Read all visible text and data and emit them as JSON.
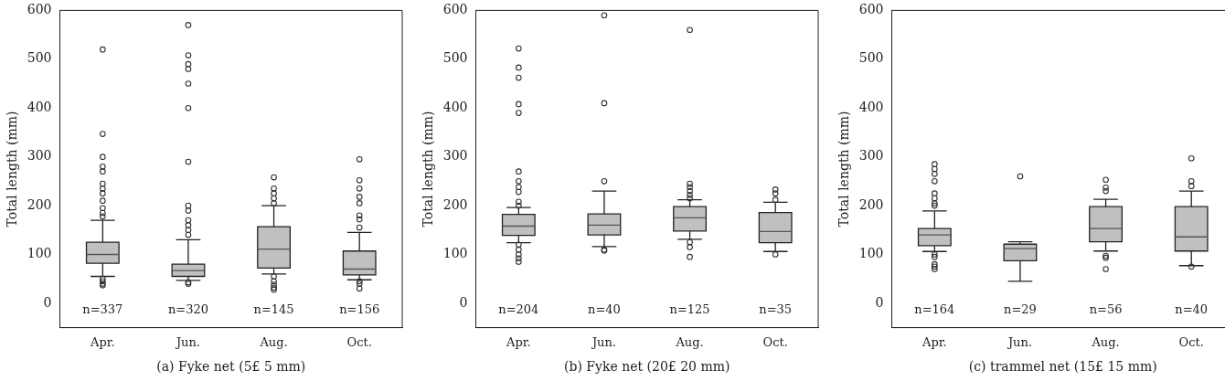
{
  "chart_data": [
    {
      "type": "box",
      "xlabel": "(a) Fyke net (5£ 5 mm)",
      "ylabel": "Total length (mm)",
      "categories": [
        "Apr.",
        "Jun.",
        "Aug.",
        "Oct."
      ],
      "color": "#c0c0c0",
      "ylim": [
        -50,
        600
      ],
      "yticks": [
        0,
        100,
        200,
        300,
        400,
        500,
        600
      ],
      "marker": "circle",
      "boxes": [
        {
          "low": 55,
          "q1": 82,
          "median": 100,
          "q3": 125,
          "high": 170,
          "outliers": [
            520,
            347,
            300,
            280,
            270,
            245,
            235,
            225,
            210,
            195,
            185,
            178,
            50,
            45,
            40,
            37
          ]
        },
        {
          "low": 47,
          "q1": 55,
          "median": 67,
          "q3": 80,
          "high": 130,
          "outliers": [
            570,
            508,
            490,
            480,
            450,
            400,
            290,
            200,
            190,
            170,
            160,
            150,
            140,
            43,
            40
          ]
        },
        {
          "low": 60,
          "q1": 72,
          "median": 111,
          "q3": 157,
          "high": 200,
          "outliers": [
            258,
            235,
            225,
            215,
            205,
            55,
            45,
            38,
            32,
            28
          ]
        },
        {
          "low": 48,
          "q1": 58,
          "median": 70,
          "q3": 107,
          "high": 145,
          "outliers": [
            295,
            252,
            235,
            218,
            205,
            180,
            172,
            155,
            45,
            40,
            30
          ]
        }
      ],
      "annotations": [
        "n=337",
        "n=320",
        "n=145",
        "n=156"
      ]
    },
    {
      "type": "box",
      "xlabel": "(b) Fyke net (20£ 20 mm)",
      "ylabel": "Total length (mm)",
      "categories": [
        "Apr.",
        "Jun.",
        "Aug.",
        "Oct."
      ],
      "color": "#c0c0c0",
      "ylim": [
        -50,
        600
      ],
      "yticks": [
        0,
        100,
        200,
        300,
        400,
        500,
        600
      ],
      "marker": "circle",
      "boxes": [
        {
          "low": 124,
          "q1": 139,
          "median": 158,
          "q3": 182,
          "high": 196,
          "outliers": [
            522,
            483,
            462,
            408,
            390,
            270,
            250,
            238,
            228,
            208,
            200,
            120,
            110,
            100,
            92,
            85
          ]
        },
        {
          "low": 116,
          "q1": 140,
          "median": 160,
          "q3": 183,
          "high": 230,
          "outliers": [
            590,
            410,
            250,
            110,
            108
          ]
        },
        {
          "low": 131,
          "q1": 148,
          "median": 175,
          "q3": 198,
          "high": 212,
          "outliers": [
            560,
            245,
            238,
            230,
            222,
            215,
            125,
            115,
            95
          ]
        },
        {
          "low": 106,
          "q1": 124,
          "median": 147,
          "q3": 186,
          "high": 207,
          "outliers": [
            233,
            225,
            212,
            100
          ]
        }
      ],
      "annotations": [
        "n=204",
        "n=40",
        "n=125",
        "n=35"
      ]
    },
    {
      "type": "box",
      "xlabel": "(c) trammel net (15£ 15 mm)",
      "ylabel": "Total length (mm)",
      "categories": [
        "Apr.",
        "Jun.",
        "Aug.",
        "Oct."
      ],
      "color": "#c0c0c0",
      "ylim": [
        -50,
        600
      ],
      "yticks": [
        0,
        100,
        200,
        300,
        400,
        500,
        600
      ],
      "marker": "circle",
      "boxes": [
        {
          "low": 106,
          "q1": 118,
          "median": 140,
          "q3": 153,
          "high": 189,
          "outliers": [
            285,
            275,
            265,
            250,
            225,
            215,
            205,
            200,
            100,
            95,
            80,
            75,
            70
          ]
        },
        {
          "low": 45,
          "q1": 87,
          "median": 112,
          "q3": 121,
          "high": 126,
          "outliers": [
            260
          ]
        },
        {
          "low": 107,
          "q1": 126,
          "median": 153,
          "q3": 198,
          "high": 213,
          "outliers": [
            253,
            237,
            230,
            97,
            93,
            70
          ]
        },
        {
          "low": 77,
          "q1": 107,
          "median": 136,
          "q3": 198,
          "high": 230,
          "outliers": [
            297,
            250,
            240,
            75
          ]
        }
      ],
      "annotations": [
        "n=164",
        "n=29",
        "n=56",
        "n=40"
      ]
    }
  ]
}
